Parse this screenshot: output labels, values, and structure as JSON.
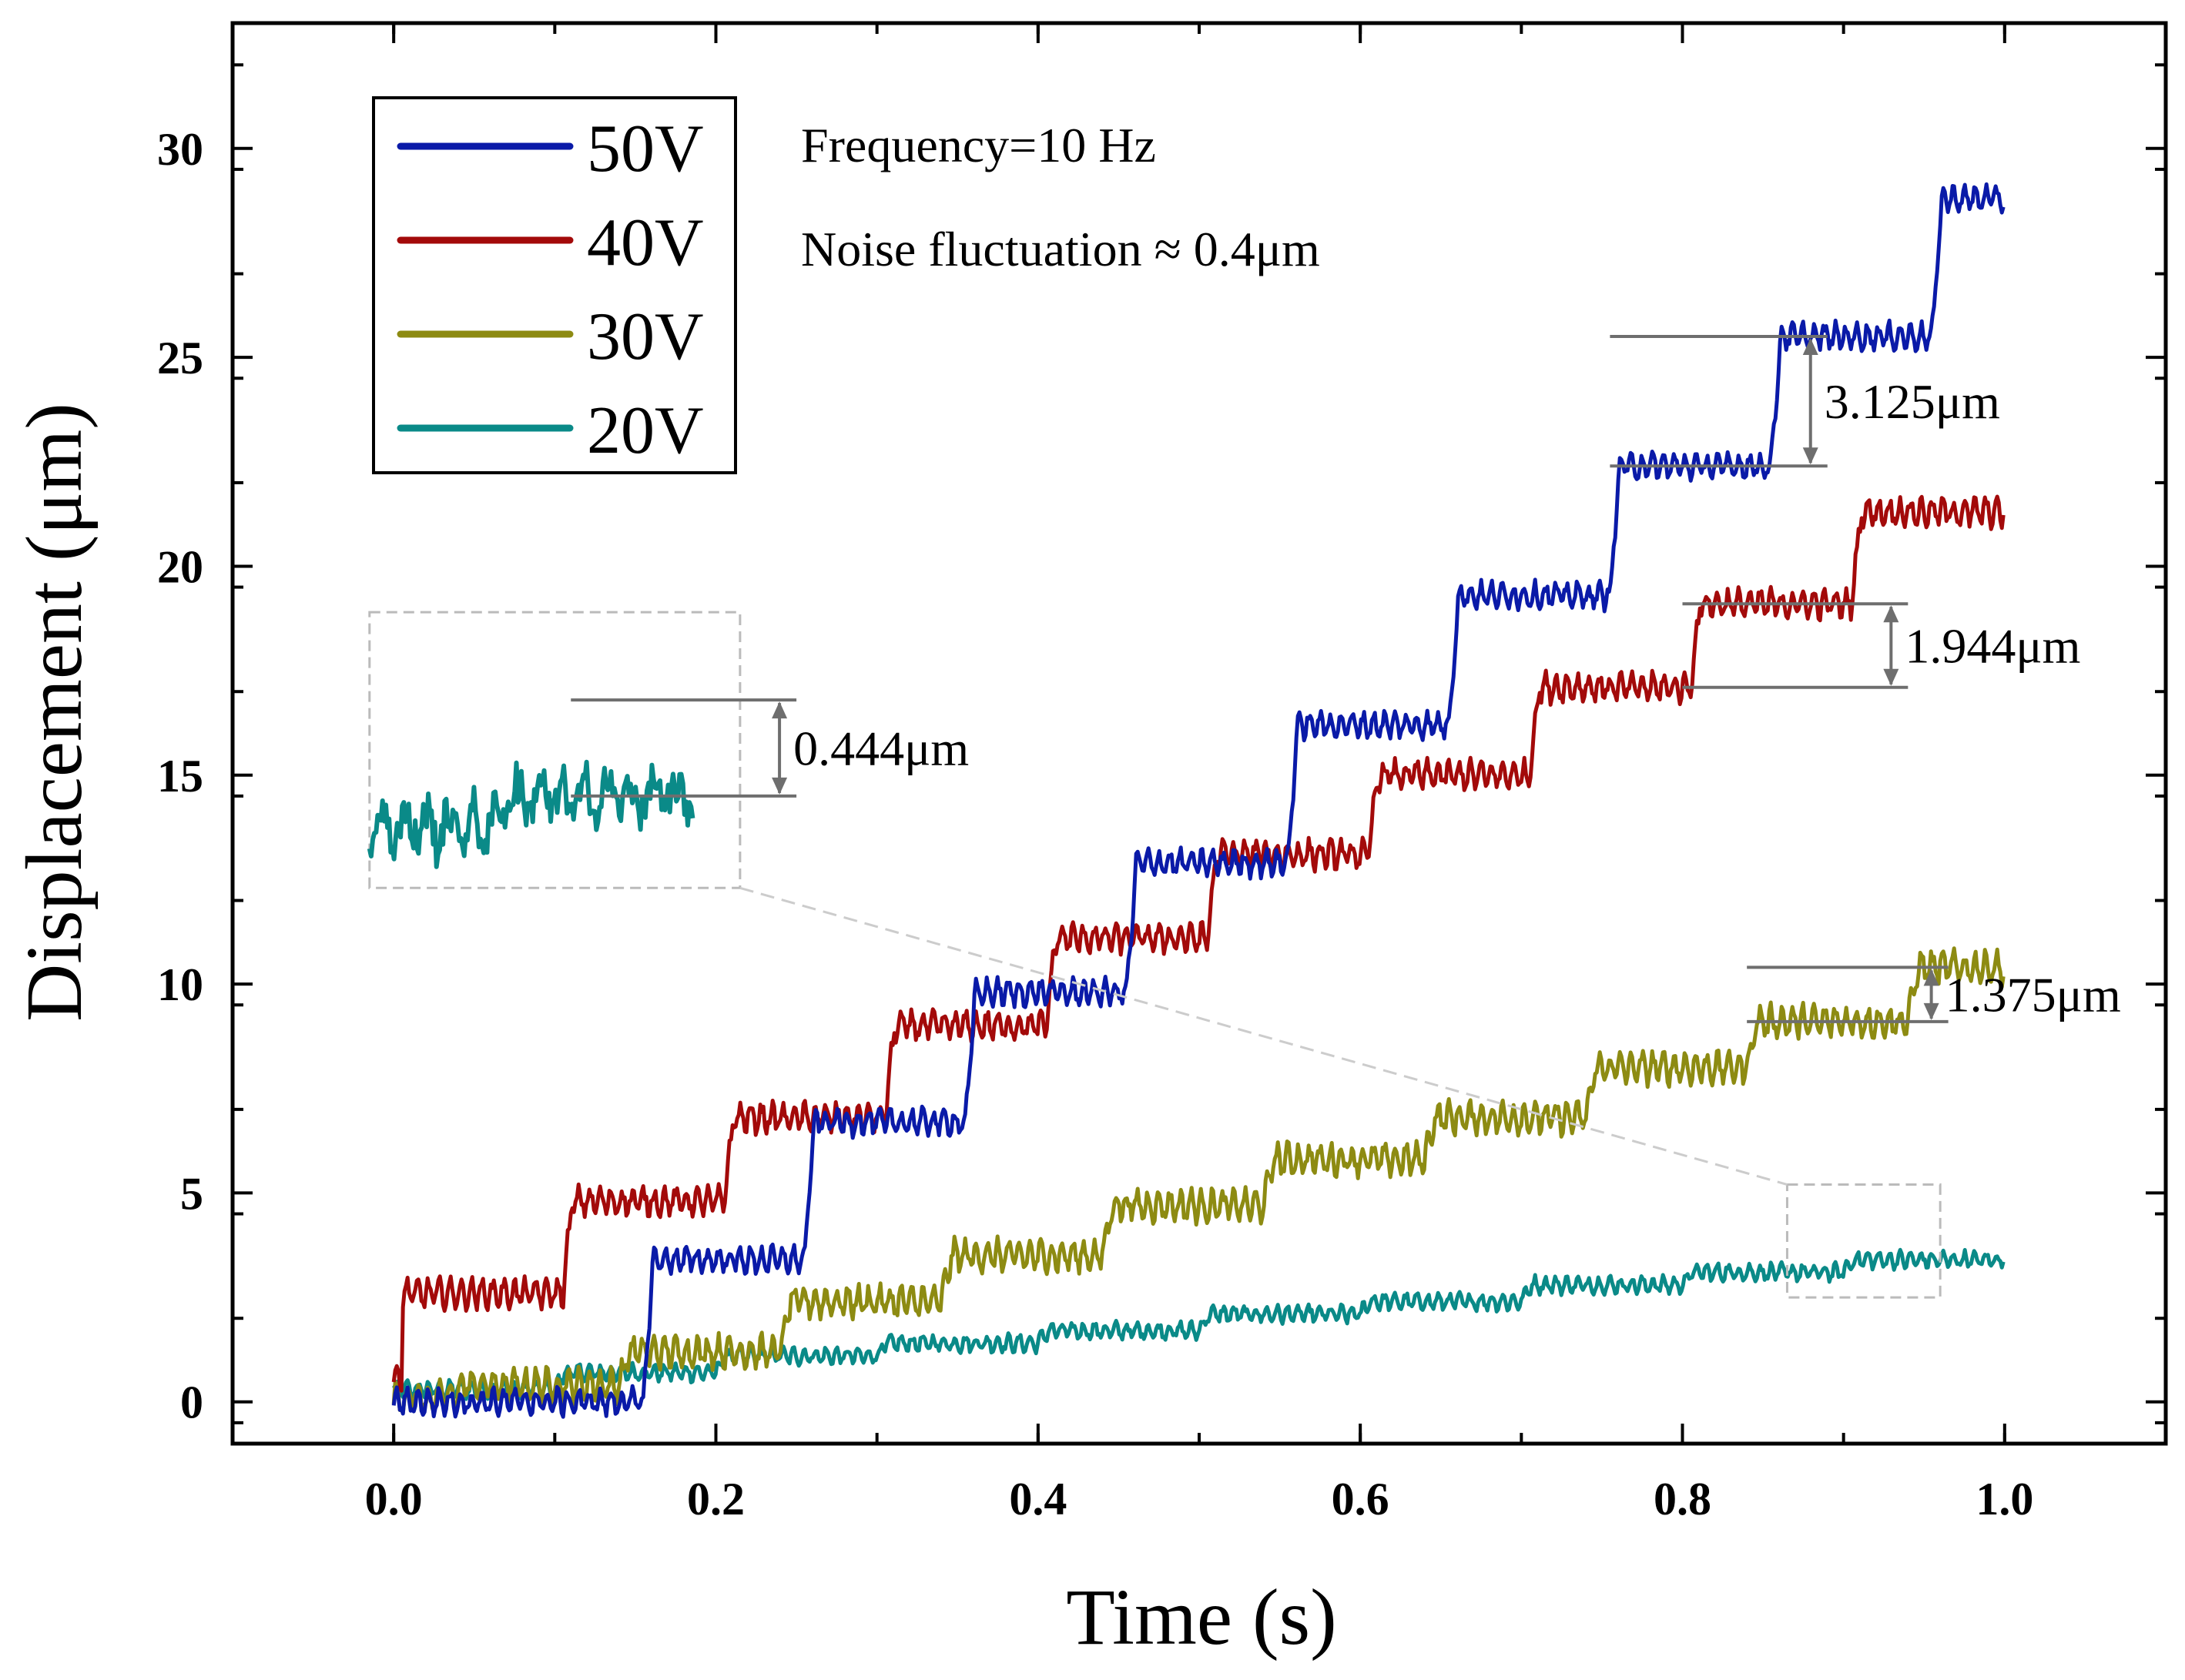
{
  "chart_data": {
    "type": "line",
    "xlabel": "Time (s)",
    "ylabel": "Displacement (μm)",
    "xlim": [
      -0.1,
      1.1
    ],
    "ylim": [
      -1,
      33
    ],
    "xticks": [
      "0.0",
      "0.2",
      "0.4",
      "0.6",
      "0.8",
      "1.0"
    ],
    "yticks": [
      "0",
      "5",
      "10",
      "15",
      "20",
      "25",
      "30"
    ],
    "xtick_values": [
      0,
      0.2,
      0.4,
      0.6,
      0.8,
      1.0
    ],
    "ytick_values": [
      0,
      5,
      10,
      15,
      20,
      25,
      30
    ],
    "grid": false,
    "legend_position": "top-left",
    "series": [
      {
        "name": "50V",
        "color": "#0a1aa8",
        "start_time": 0.055,
        "step_period": 0.1,
        "start_value": 0.0,
        "plateaus": [
          0,
          3.4,
          6.7,
          9.8,
          12.9,
          16.2,
          19.3,
          22.4,
          25.5,
          28.8,
          32.0
        ],
        "noise": 0.45
      },
      {
        "name": "40V",
        "color": "#a30a0a",
        "start_time": 0.005,
        "step_period": 0.1,
        "start_value": 0.5,
        "plateaus": [
          2.6,
          4.8,
          6.8,
          9.0,
          11.1,
          13.1,
          15.0,
          17.1,
          19.1,
          21.3
        ],
        "noise": 0.5
      },
      {
        "name": "30V",
        "color": "#8d8b12",
        "start_time": 0.04,
        "step_period": 0.1,
        "start_value": 0.1,
        "plateaus": [
          0.4,
          1.2,
          2.4,
          3.5,
          4.7,
          5.8,
          6.8,
          8.0,
          9.1,
          10.4,
          11.7
        ],
        "noise": 0.55
      },
      {
        "name": "20V",
        "color": "#0a8a88",
        "start_time": 0.0,
        "step_period": 0.1,
        "start_value": 0.3,
        "plateaus": [
          0.3,
          0.7,
          1.1,
          1.4,
          1.7,
          2.1,
          2.4,
          2.8,
          3.1,
          3.4,
          3.7,
          4.0
        ],
        "noise": 0.3
      }
    ],
    "annotations": [
      {
        "label": "3.125μm",
        "x_start": 0.755,
        "x_end": 0.89,
        "y_low": 22.4,
        "y_high": 25.5
      },
      {
        "label": "1.944μm",
        "x_start": 0.8,
        "x_end": 0.94,
        "y_low": 17.1,
        "y_high": 19.1
      },
      {
        "label": "1.375μm",
        "x_start": 0.84,
        "x_end": 0.965,
        "y_low": 9.1,
        "y_high": 10.4
      },
      {
        "label": "0.444μm",
        "x_start": 0.11,
        "x_end": 0.25,
        "y_low": 14.5,
        "y_high": 16.8
      }
    ],
    "notes": [
      "Frequency=10 Hz",
      "Noise fluctuation ≈ 0.4μm"
    ],
    "zoom_region": {
      "x": [
        0.865,
        0.96
      ],
      "y": [
        2.5,
        5.2
      ]
    },
    "inset_region": {
      "x": [
        -0.015,
        0.215
      ],
      "y": [
        12.3,
        18.9
      ]
    }
  }
}
